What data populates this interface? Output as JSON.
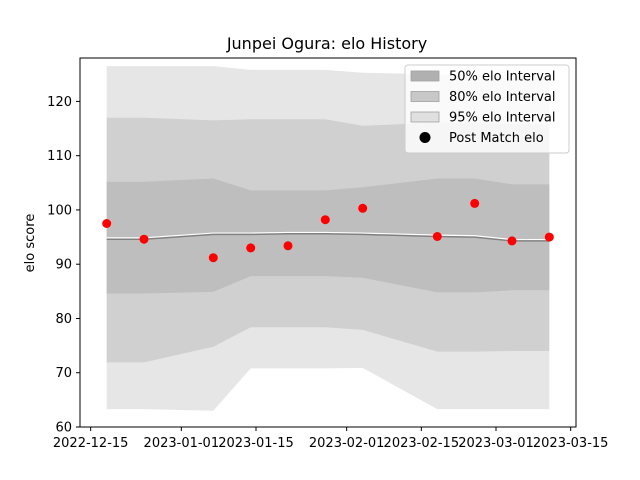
{
  "chart_data": {
    "type": "line",
    "title": "Junpei Ogura: elo History",
    "xlabel": "",
    "ylabel": "elo score",
    "ylim": [
      60,
      128
    ],
    "xlim": [
      "2022-12-13",
      "2023-03-16"
    ],
    "yticks": [
      60,
      70,
      80,
      90,
      100,
      110,
      120
    ],
    "xticks": [
      "2022-12-15",
      "2023-01-01",
      "2023-01-15",
      "2023-02-01",
      "2023-02-15",
      "2023-03-01",
      "2023-03-15"
    ],
    "grid": false,
    "legend_position": "top-right",
    "x": [
      "2022-12-18",
      "2022-12-25",
      "2023-01-07",
      "2023-01-14",
      "2023-01-21",
      "2023-01-28",
      "2023-02-04",
      "2023-02-18",
      "2023-02-25",
      "2023-03-04",
      "2023-03-11"
    ],
    "mean": [
      94.6,
      94.6,
      95.5,
      95.5,
      95.6,
      95.6,
      95.5,
      95.1,
      95.0,
      94.3,
      94.3
    ],
    "post_match_elo": [
      97.5,
      94.6,
      91.2,
      93.0,
      93.4,
      98.2,
      100.3,
      95.1,
      101.2,
      94.3,
      95.0
    ],
    "series": [
      {
        "name": "95% elo Interval",
        "color": "#e6e6e6",
        "upper": [
          126.5,
          126.5,
          126.5,
          125.8,
          125.8,
          125.8,
          125.3,
          125.0,
          124.8,
          124.6,
          124.6
        ],
        "lower": [
          63.3,
          63.3,
          63.0,
          70.8,
          70.8,
          70.8,
          70.9,
          63.3,
          63.3,
          63.3,
          63.3
        ]
      },
      {
        "name": "80% elo Interval",
        "color": "#d0d0d0",
        "upper": [
          117.0,
          117.0,
          116.5,
          116.7,
          116.7,
          116.7,
          115.5,
          116.1,
          116.0,
          115.8,
          115.8
        ],
        "lower": [
          71.9,
          71.9,
          74.8,
          78.4,
          78.4,
          78.4,
          77.9,
          73.9,
          73.9,
          74.0,
          74.0
        ]
      },
      {
        "name": "50% elo Interval",
        "color": "#bebebe",
        "upper": [
          105.2,
          105.2,
          105.8,
          103.6,
          103.6,
          103.6,
          104.2,
          105.8,
          105.8,
          104.7,
          104.7
        ],
        "lower": [
          84.6,
          84.6,
          84.9,
          87.8,
          87.8,
          87.8,
          87.5,
          84.8,
          84.8,
          85.2,
          85.2
        ]
      }
    ],
    "legend": [
      {
        "label": "50% elo Interval",
        "swatch": "#b0b0b0",
        "kind": "patch"
      },
      {
        "label": "80% elo Interval",
        "swatch": "#c8c8c8",
        "kind": "patch"
      },
      {
        "label": "95% elo Interval",
        "swatch": "#e0e0e0",
        "kind": "patch"
      },
      {
        "label": "Post Match elo",
        "swatch": "#000000",
        "kind": "dot"
      }
    ],
    "colors": {
      "mean_line": "#808080",
      "points": "#ff0000"
    }
  }
}
